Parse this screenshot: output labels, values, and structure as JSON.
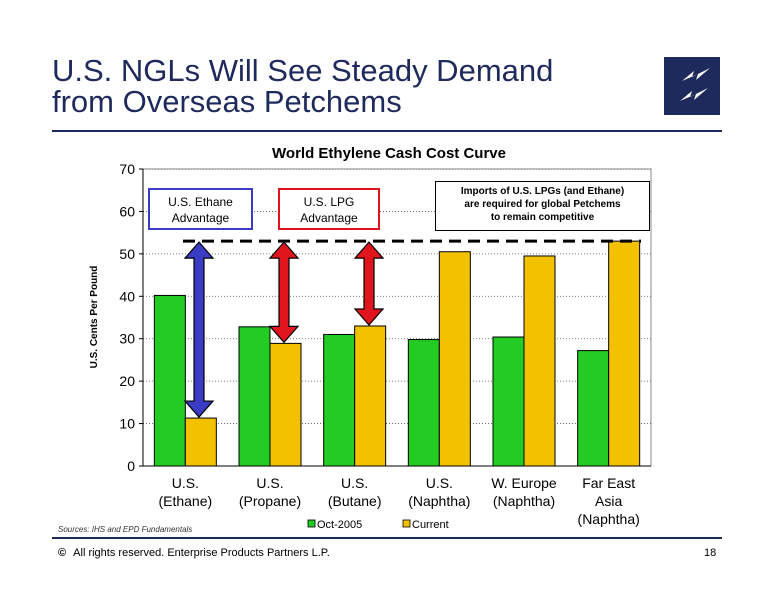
{
  "header": {
    "title_line1": "U.S. NGLs Will See Steady Demand",
    "title_line2": "from Overseas Petchems"
  },
  "chart_data": {
    "type": "bar",
    "title": "World Ethylene Cash Cost Curve",
    "xlabel": "",
    "ylabel": "U.S. Cents Per Pound",
    "ylim": [
      0,
      70
    ],
    "yticks": [
      0,
      10,
      20,
      30,
      40,
      50,
      60,
      70
    ],
    "categories": [
      [
        "U.S.",
        "(Ethane)"
      ],
      [
        "U.S.",
        "(Propane)"
      ],
      [
        "U.S.",
        "(Butane)"
      ],
      [
        "U.S.",
        "(Naphtha)"
      ],
      [
        "W. Europe",
        "(Naphtha)"
      ],
      [
        "Far East",
        "Asia",
        "(Naphtha)"
      ]
    ],
    "series": [
      {
        "name": "Oct-2005",
        "color": "#22cc22",
        "values": [
          40.2,
          32.8,
          31.0,
          29.8,
          30.4,
          27.2
        ]
      },
      {
        "name": "Current",
        "color": "#f2c200",
        "values": [
          11.3,
          28.9,
          33.0,
          50.5,
          49.5,
          53.0
        ]
      }
    ],
    "grid": true,
    "legend_position": "bottom",
    "reference_line": {
      "value": 53,
      "style": "dashed"
    },
    "annotations": {
      "ethane_advantage": [
        "U.S. Ethane",
        "Advantage"
      ],
      "lpg_advantage": [
        "U.S. LPG",
        "Advantage"
      ],
      "imports_note": [
        "Imports of U.S. LPGs (and Ethane)",
        "are required for global Petchems",
        "to remain competitive"
      ]
    },
    "arrow_colors": {
      "ethane": "#3a3cc4",
      "lpg": "#e0141c"
    }
  },
  "footer": {
    "sources": "Sources:  IHS and EPD Fundamentals",
    "copyright": "All rights reserved. Enterprise Products Partners L.P.",
    "copyright_symbol": "©",
    "page_number": "18"
  },
  "brand": {
    "navy": "#1f2a5c"
  }
}
